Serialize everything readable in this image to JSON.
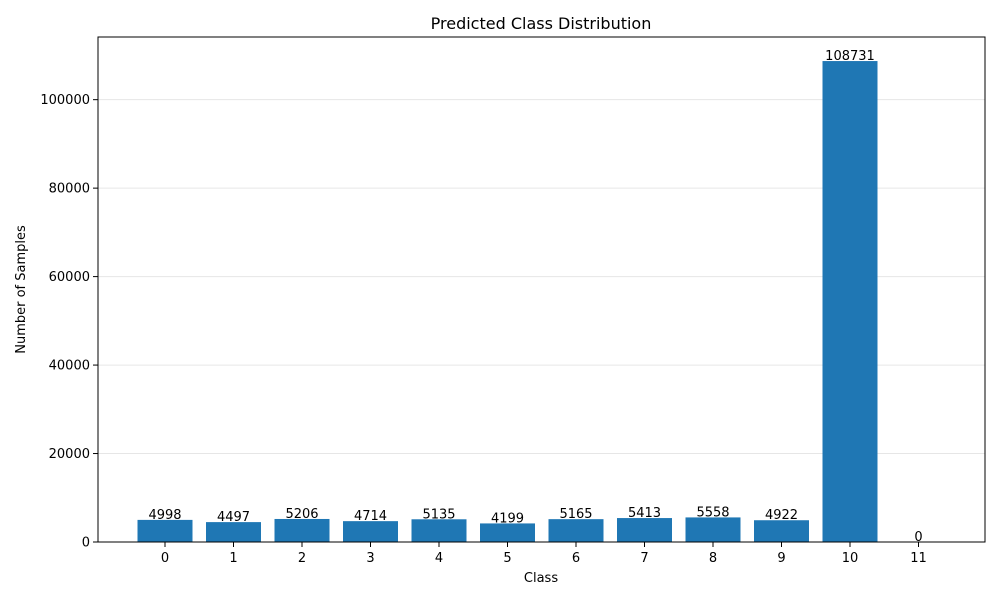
{
  "chart_data": {
    "type": "bar",
    "title": "Predicted Class Distribution",
    "xlabel": "Class",
    "ylabel": "Number of Samples",
    "categories": [
      "0",
      "1",
      "2",
      "3",
      "4",
      "5",
      "6",
      "7",
      "8",
      "9",
      "10",
      "11"
    ],
    "values": [
      4998,
      4497,
      5206,
      4714,
      5135,
      4199,
      5165,
      5413,
      5558,
      4922,
      108731,
      0
    ],
    "ylim": [
      0,
      114168
    ],
    "yticks": [
      0,
      20000,
      40000,
      60000,
      80000,
      100000
    ],
    "ytick_labels": [
      "0",
      "20000",
      "40000",
      "60000",
      "80000",
      "100000"
    ],
    "grid": "y-axis, light",
    "bar_color": "#1f77b4",
    "grid_color": "#e6e6e6",
    "legend": "none"
  }
}
